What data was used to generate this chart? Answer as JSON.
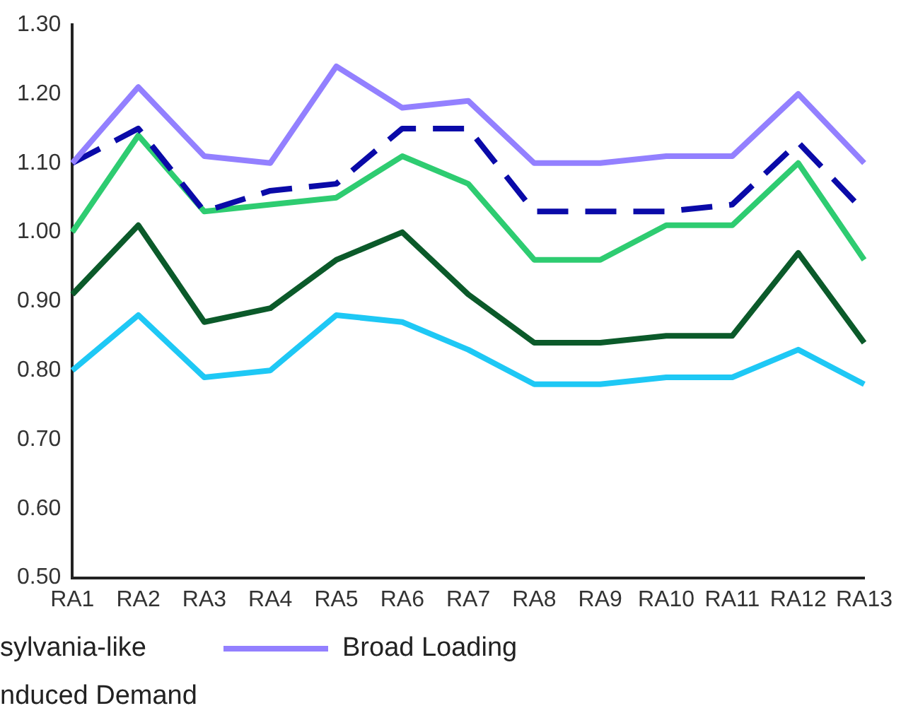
{
  "chart_data": {
    "type": "line",
    "categories": [
      "RA1",
      "RA2",
      "RA3",
      "RA4",
      "RA5",
      "RA6",
      "RA7",
      "RA8",
      "RA9",
      "RA10",
      "RA11",
      "RA12",
      "RA13"
    ],
    "series": [
      {
        "name": "Broad Loading",
        "color": "#9380ff",
        "values": [
          1.1,
          1.21,
          1.11,
          1.1,
          1.24,
          1.18,
          1.19,
          1.1,
          1.1,
          1.11,
          1.11,
          1.2,
          1.1
        ]
      },
      {
        "color": "#0a0aa8",
        "line_style": "dashed",
        "values": [
          1.1,
          1.15,
          1.03,
          1.06,
          1.07,
          1.15,
          1.15,
          1.03,
          1.03,
          1.03,
          1.04,
          1.13,
          1.03
        ]
      },
      {
        "color": "#2ecc71",
        "values": [
          1.0,
          1.14,
          1.03,
          1.04,
          1.05,
          1.11,
          1.07,
          0.96,
          0.96,
          1.01,
          1.01,
          1.1,
          0.96
        ]
      },
      {
        "color": "#0b5a2a",
        "values": [
          0.91,
          1.01,
          0.87,
          0.89,
          0.96,
          1.0,
          0.91,
          0.84,
          0.84,
          0.85,
          0.85,
          0.97,
          0.84
        ]
      },
      {
        "color": "#1ec8f5",
        "values": [
          0.8,
          0.88,
          0.79,
          0.8,
          0.88,
          0.87,
          0.83,
          0.78,
          0.78,
          0.79,
          0.79,
          0.83,
          0.78
        ]
      }
    ],
    "ylim": [
      0.5,
      1.3
    ],
    "yticks": [
      {
        "value": 0.5,
        "label": "0.50"
      },
      {
        "value": 0.6,
        "label": "0.60"
      },
      {
        "value": 0.7,
        "label": "0.70"
      },
      {
        "value": 0.8,
        "label": "0.80"
      },
      {
        "value": 0.9,
        "label": "0.90"
      },
      {
        "value": 1.0,
        "label": "1.00"
      },
      {
        "value": 1.1,
        "label": "1.10"
      },
      {
        "value": 1.2,
        "label": "1.20"
      },
      {
        "value": 1.3,
        "label": "1.30"
      }
    ],
    "grid": false,
    "legend": "bottom",
    "marker": "none",
    "annotations": [
      "sylvania-like",
      "nduced Demand"
    ]
  }
}
